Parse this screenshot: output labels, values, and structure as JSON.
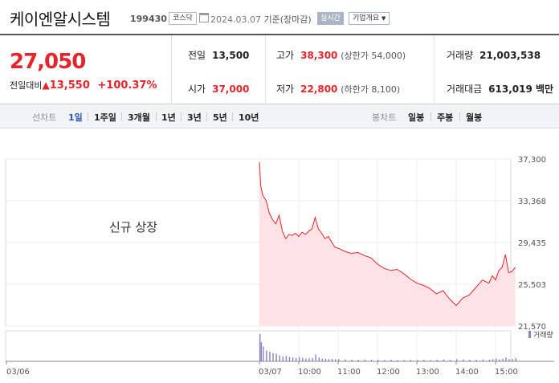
{
  "header": {
    "stock_name": "케이엔알시스템",
    "stock_code": "199430",
    "market_badge": "코스닥",
    "date": "2024.03.07",
    "basis": "기준(장마감)",
    "realtime_button": "실시간",
    "info_button": "기업개요"
  },
  "summary": {
    "current_price": "27,050",
    "change_label": "전일대비",
    "change_amount": "13,550",
    "change_rate": "+100.37%",
    "stats": {
      "prev_close": {
        "label": "전일",
        "value": "13,500"
      },
      "open": {
        "label": "시가",
        "value": "37,000"
      },
      "high": {
        "label": "고가",
        "value": "38,300",
        "note": "(상한가 54,000)"
      },
      "low": {
        "label": "저가",
        "value": "22,800",
        "note": "(하한가 8,100)"
      },
      "volume": {
        "label": "거래량",
        "value": "21,003,538"
      },
      "amount": {
        "label": "거래대금",
        "value": "613,019 백만"
      }
    }
  },
  "tabs": {
    "line_label": "선차트",
    "line_periods": [
      "1일",
      "1주일",
      "3개월",
      "1년",
      "3년",
      "5년",
      "10년"
    ],
    "active": "1일",
    "candle_label": "봉차트",
    "candle_periods": [
      "일봉",
      "주봉",
      "월봉"
    ]
  },
  "chart_data": {
    "type": "area",
    "annotation": "신규 상장",
    "legend": "거래량",
    "y_ticks": [
      "37,300",
      "33,368",
      "29,435",
      "25,503",
      "21,570"
    ],
    "ylim": [
      21570,
      37300
    ],
    "x_ticks": [
      "03/06",
      "03/07",
      "10:00",
      "11:00",
      "12:00",
      "13:00",
      "14:00",
      "15:00"
    ],
    "price_series": {
      "times": [
        "09:00",
        "09:02",
        "09:05",
        "09:10",
        "09:15",
        "09:20",
        "09:25",
        "09:30",
        "09:35",
        "09:40",
        "09:45",
        "09:50",
        "09:55",
        "10:00",
        "10:05",
        "10:10",
        "10:15",
        "10:20",
        "10:25",
        "10:30",
        "10:35",
        "10:40",
        "10:45",
        "10:50",
        "10:55",
        "11:00",
        "11:10",
        "11:20",
        "11:30",
        "11:40",
        "11:50",
        "12:00",
        "12:10",
        "12:20",
        "12:30",
        "12:40",
        "12:50",
        "13:00",
        "13:10",
        "13:20",
        "13:30",
        "13:40",
        "13:50",
        "14:00",
        "14:10",
        "14:20",
        "14:30",
        "14:40",
        "14:50",
        "14:55",
        "15:00",
        "15:05",
        "15:10",
        "15:15",
        "15:20",
        "15:25",
        "15:30"
      ],
      "values": [
        37000,
        34800,
        33900,
        33400,
        32200,
        31600,
        31200,
        32000,
        30500,
        29800,
        30200,
        30100,
        30300,
        30000,
        30400,
        30200,
        30500,
        30700,
        31800,
        30700,
        30300,
        29800,
        30000,
        29500,
        29000,
        28900,
        28600,
        28400,
        28500,
        28200,
        28000,
        27400,
        27000,
        26800,
        26900,
        26500,
        26000,
        25600,
        25400,
        25100,
        24600,
        24900,
        24100,
        23500,
        24200,
        24500,
        25200,
        25900,
        25600,
        26300,
        25900,
        26800,
        27100,
        28300,
        26600,
        26700,
        27100
      ]
    },
    "volume_note": "intraday volume bars (relative)",
    "volume_values": [
      100,
      70,
      55,
      40,
      35,
      30,
      28,
      22,
      18,
      20,
      16,
      14,
      12,
      15,
      12,
      10,
      11,
      12,
      25,
      14,
      10,
      9,
      8,
      9,
      8,
      8,
      7,
      6,
      6,
      7,
      6,
      6,
      5,
      6,
      5,
      5,
      6,
      5,
      6,
      5,
      6,
      7,
      6,
      8,
      7,
      6,
      6,
      7,
      6,
      8,
      10,
      7,
      9,
      14,
      8,
      9,
      12
    ]
  }
}
